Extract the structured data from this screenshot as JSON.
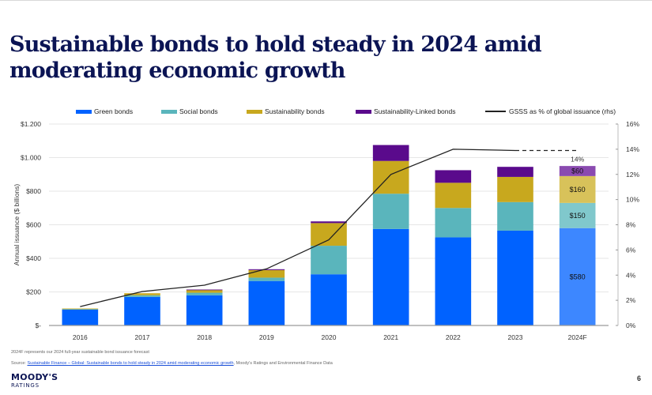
{
  "slide": {
    "title": "Sustainable bonds to hold steady in 2024 amid moderating economic growth",
    "footnote": "2024F represents our 2024 full-year sustainable bond issuance forecast",
    "source_prefix": "Source: ",
    "source_link": "Sustainable Finance – Global: Sustainable bonds to hold steady in 2024 amid moderating economic growth",
    "source_suffix": ", Moody's Ratings and Environmental Finance Data",
    "brand_name": "MOODY'S",
    "brand_sub": "RATINGS",
    "page_number": "6"
  },
  "colors": {
    "green": "#0062ff",
    "social": "#5ab5bc",
    "sustainability": "#c8a81e",
    "sll": "#5a0a8c",
    "green_forecast": "#3d87ff",
    "social_forecast": "#80c8cc",
    "sustainability_forecast": "#d8c25a",
    "sll_forecast": "#8a4ab0",
    "line": "#222222",
    "title": "#0b1454"
  },
  "chart_data": {
    "type": "bar",
    "stacked": true,
    "title": "Sustainable bonds to hold steady in 2024 amid moderating economic growth",
    "xlabel": "",
    "ylabel": "Annual issuance ($ billions)",
    "y2label": "GSSS as % of global issuance (rhs)",
    "categories": [
      "2016",
      "2017",
      "2018",
      "2019",
      "2020",
      "2021",
      "2022",
      "2023",
      "2024F"
    ],
    "ylim": [
      0,
      1200
    ],
    "y_ticks": [
      0,
      200,
      400,
      600,
      800,
      1000,
      1200
    ],
    "y_tick_labels": [
      "$-",
      "$200",
      "$400",
      "$600",
      "$800",
      "$1.000",
      "$1.200"
    ],
    "y2lim": [
      0,
      16
    ],
    "y2_ticks": [
      0,
      2,
      4,
      6,
      8,
      10,
      12,
      14,
      16
    ],
    "y2_tick_labels": [
      "0%",
      "2%",
      "4%",
      "6%",
      "8%",
      "10%",
      "12%",
      "14%",
      "16%"
    ],
    "grid": true,
    "legend_position": "top",
    "series": [
      {
        "name": "Green bonds",
        "key": "green",
        "values": [
          95,
          170,
          180,
          265,
          305,
          575,
          525,
          565,
          580
        ]
      },
      {
        "name": "Social bonds",
        "key": "social",
        "values": [
          3,
          10,
          15,
          20,
          170,
          210,
          175,
          170,
          150
        ]
      },
      {
        "name": "Sustainability bonds",
        "key": "sustainability",
        "values": [
          3,
          12,
          18,
          45,
          135,
          195,
          150,
          150,
          160
        ]
      },
      {
        "name": "Sustainability-Linked bonds",
        "key": "sll",
        "values": [
          0,
          0,
          1,
          5,
          10,
          95,
          75,
          60,
          60
        ]
      }
    ],
    "line_series": {
      "name": "GSSS as % of global issuance (rhs)",
      "axis": "right",
      "values": [
        1.5,
        2.7,
        3.2,
        4.5,
        6.8,
        12.0,
        14.0,
        13.9,
        13.9
      ],
      "dashed_from_index": 7
    },
    "data_labels": [
      {
        "category": "2024F",
        "series": "Green bonds",
        "text": "$580"
      },
      {
        "category": "2024F",
        "series": "Social bonds",
        "text": "$150"
      },
      {
        "category": "2024F",
        "series": "Sustainability bonds",
        "text": "$160"
      },
      {
        "category": "2024F",
        "series": "Sustainability-Linked bonds",
        "text": "$60"
      },
      {
        "category": "2024F",
        "series": "GSSS as % of global issuance (rhs)",
        "text": "14%"
      }
    ],
    "forecast_category": "2024F"
  }
}
